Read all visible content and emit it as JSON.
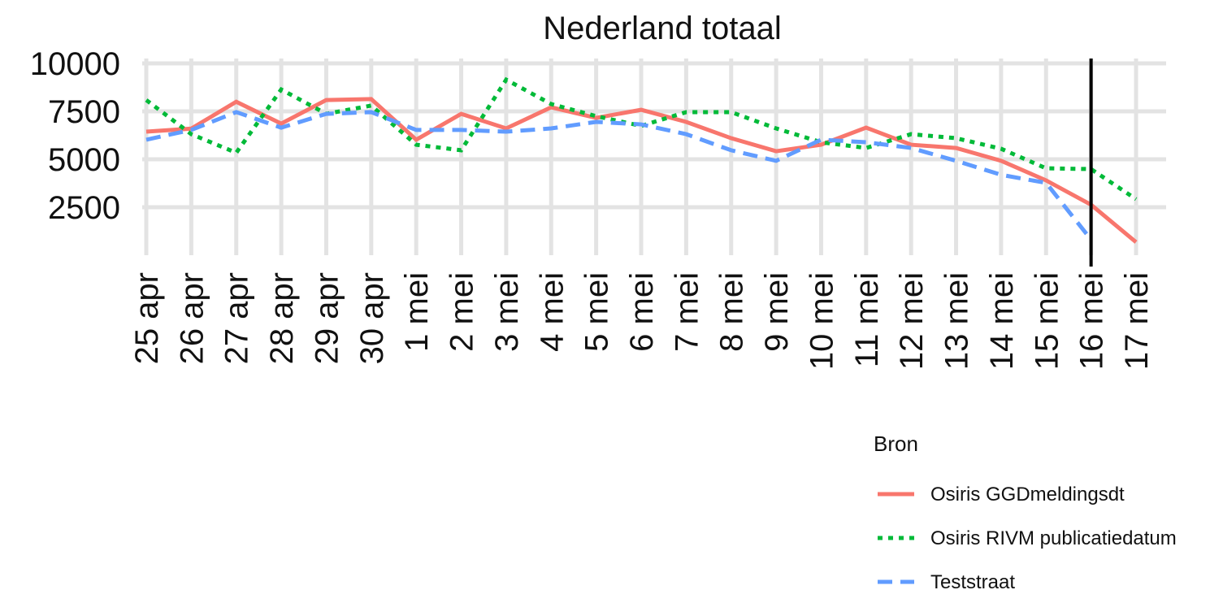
{
  "chart_data": {
    "type": "line",
    "title": "Nederland totaal",
    "categories": [
      "25 apr",
      "26 apr",
      "27 apr",
      "28 apr",
      "29 apr",
      "30 apr",
      "1 mei",
      "2 mei",
      "3 mei",
      "4 mei",
      "5 mei",
      "6 mei",
      "7 mei",
      "8 mei",
      "9 mei",
      "10 mei",
      "11 mei",
      "12 mei",
      "13 mei",
      "14 mei",
      "15 mei",
      "16 mei",
      "17 mei"
    ],
    "series": [
      {
        "name": "Osiris GGDmeldingsdt",
        "color": "#f8766d",
        "linestyle": "solid",
        "values": [
          6440,
          6600,
          8000,
          6860,
          8090,
          8140,
          6020,
          7370,
          6610,
          7710,
          7160,
          7580,
          6950,
          6100,
          5420,
          5760,
          6650,
          5760,
          5590,
          4920,
          3900,
          2630,
          680
        ]
      },
      {
        "name": "Osiris RIVM publicatiedatum",
        "color": "#00ba38",
        "linestyle": "dotted",
        "values": [
          8090,
          6310,
          5340,
          8640,
          7370,
          7800,
          5760,
          5470,
          9150,
          7880,
          7250,
          6740,
          7460,
          7460,
          6610,
          5890,
          5590,
          6310,
          6100,
          5550,
          4530,
          4490,
          2920
        ]
      },
      {
        "name": "Teststraat",
        "color": "#619cff",
        "linestyle": "dashed",
        "values": [
          6020,
          6530,
          7460,
          6650,
          7370,
          7460,
          6530,
          6530,
          6440,
          6610,
          6950,
          6820,
          6310,
          5470,
          4920,
          6020,
          5890,
          5590,
          4920,
          4190,
          3770,
          810,
          null
        ]
      }
    ],
    "ylim": [
      0,
      10000
    ],
    "yticks": [
      2500,
      5000,
      7500,
      10000
    ],
    "grid": true,
    "legend_title": "Bron",
    "legend_position": "bottom-right",
    "vertical_line_at": "16 mei"
  }
}
